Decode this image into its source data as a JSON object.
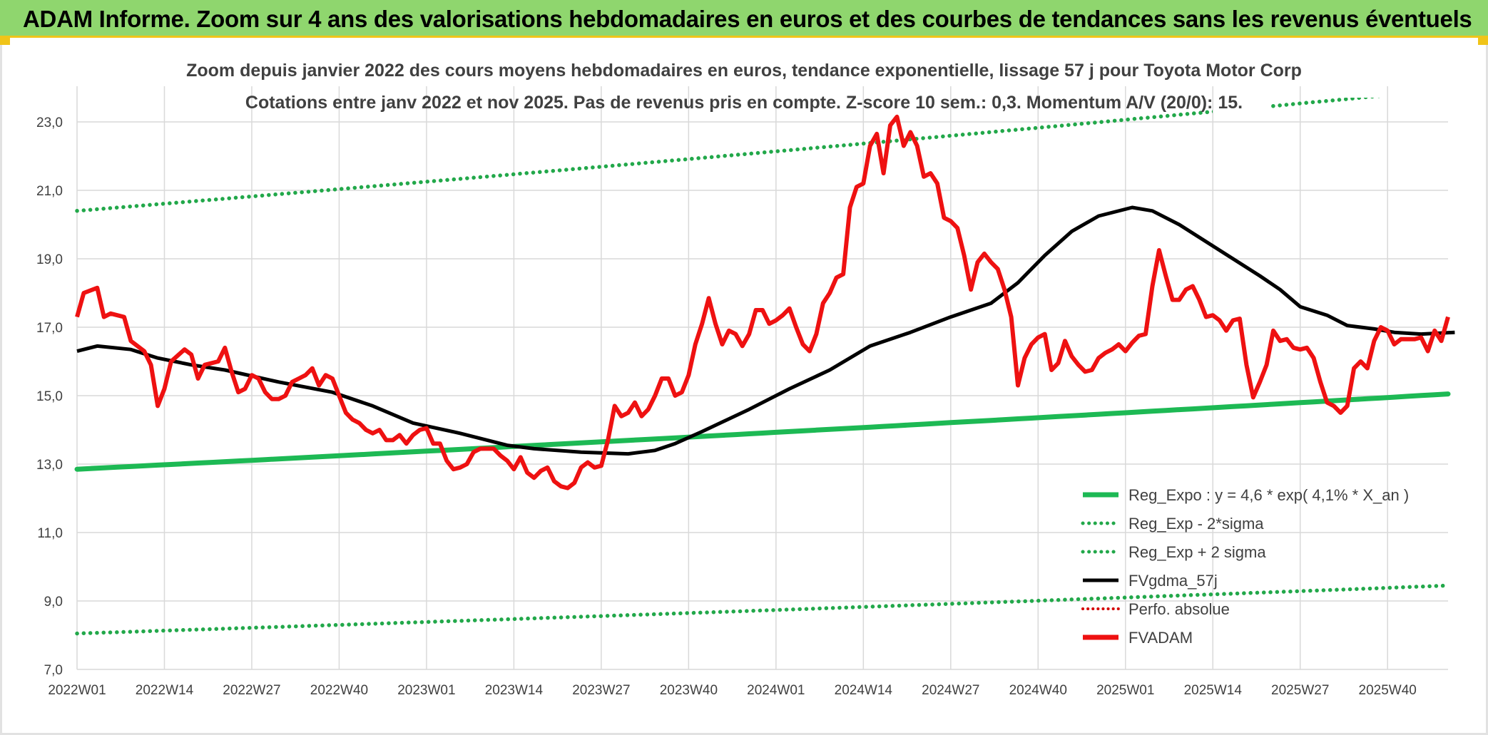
{
  "banner": {
    "title": "ADAM Informe. Zoom sur 4 ans des valorisations hebdomadaires en euros et des courbes de tendances sans les revenus éventuels"
  },
  "colors": {
    "banner_bg": "#8fd66e",
    "banner_border": "#f0c419",
    "reg_expo": "#1db954",
    "sigma_lines": "#22a84a",
    "fvgdma": "#000000",
    "perfo": "#d40000",
    "fvadam": "#ee1111",
    "grid": "#d9d9d9"
  },
  "chart_data": {
    "type": "line",
    "title_line1": "Zoom depuis janvier 2022 des cours moyens hebdomadaires en euros, tendance exponentielle, lissage 57 j pour Toyota Motor Corp",
    "title_line2": "Cotations entre janv 2022 et nov 2025. Pas de revenus pris en compte. Z-score 10 sem.: 0,3. Momentum A/V (20/0): 15.",
    "ylim": [
      7,
      24
    ],
    "y_ticks": [
      "7,0",
      "9,0",
      "11,0",
      "13,0",
      "15,0",
      "17,0",
      "19,0",
      "21,0",
      "23,0"
    ],
    "x_tick_labels": [
      "2022W01",
      "2022W14",
      "2022W27",
      "2022W40",
      "2023W01",
      "2023W14",
      "2023W27",
      "2023W40",
      "2024W01",
      "2024W14",
      "2024W27",
      "2024W40",
      "2025W01",
      "2025W14",
      "2025W27",
      "2025W40"
    ],
    "n_weeks": 205,
    "legend": {
      "reg_expo": "Reg_Expo : y = 4,6 * exp( 4,1% *  X_an )",
      "reg_minus": "Reg_Exp - 2*sigma",
      "reg_plus": "Reg_Exp + 2 sigma",
      "fvgdma": "FVgdma_57j",
      "perfo": "Perfo. absolue",
      "fvadam": "FVADAM"
    },
    "series": {
      "reg_expo": {
        "start": 12.85,
        "end": 15.05
      },
      "reg_minus": {
        "start": 8.05,
        "end": 9.45
      },
      "reg_plus": {
        "start": 20.4,
        "end": 23.95
      },
      "fvgdma_keypoints": [
        [
          0,
          16.3
        ],
        [
          3,
          16.45
        ],
        [
          8,
          16.35
        ],
        [
          12,
          16.1
        ],
        [
          17,
          15.9
        ],
        [
          22,
          15.75
        ],
        [
          30,
          15.4
        ],
        [
          38,
          15.1
        ],
        [
          44,
          14.7
        ],
        [
          50,
          14.2
        ],
        [
          57,
          13.9
        ],
        [
          64,
          13.55
        ],
        [
          68,
          13.45
        ],
        [
          75,
          13.35
        ],
        [
          82,
          13.3
        ],
        [
          86,
          13.4
        ],
        [
          89,
          13.6
        ],
        [
          93,
          13.95
        ],
        [
          100,
          14.6
        ],
        [
          106,
          15.2
        ],
        [
          112,
          15.75
        ],
        [
          118,
          16.45
        ],
        [
          124,
          16.85
        ],
        [
          130,
          17.3
        ],
        [
          136,
          17.7
        ],
        [
          140,
          18.3
        ],
        [
          144,
          19.1
        ],
        [
          148,
          19.8
        ],
        [
          152,
          20.25
        ],
        [
          157,
          20.5
        ],
        [
          160,
          20.4
        ],
        [
          164,
          20.0
        ],
        [
          168,
          19.5
        ],
        [
          172,
          19.0
        ],
        [
          176,
          18.5
        ],
        [
          179,
          18.1
        ],
        [
          182,
          17.6
        ],
        [
          186,
          17.35
        ],
        [
          189,
          17.05
        ],
        [
          193,
          16.95
        ],
        [
          196,
          16.85
        ],
        [
          200,
          16.8
        ],
        [
          205,
          16.85
        ]
      ],
      "fvadam_keypoints": [
        [
          0,
          17.3
        ],
        [
          1,
          18.0
        ],
        [
          3,
          18.15
        ],
        [
          4,
          17.3
        ],
        [
          5,
          17.4
        ],
        [
          7,
          17.3
        ],
        [
          8,
          16.6
        ],
        [
          10,
          16.3
        ],
        [
          11,
          15.9
        ],
        [
          12,
          14.7
        ],
        [
          13,
          15.2
        ],
        [
          14,
          16.0
        ],
        [
          16,
          16.35
        ],
        [
          17,
          16.2
        ],
        [
          18,
          15.5
        ],
        [
          19,
          15.9
        ],
        [
          21,
          16.0
        ],
        [
          22,
          16.4
        ],
        [
          23,
          15.7
        ],
        [
          24,
          15.1
        ],
        [
          25,
          15.2
        ],
        [
          26,
          15.6
        ],
        [
          27,
          15.5
        ],
        [
          28,
          15.1
        ],
        [
          29,
          14.9
        ],
        [
          30,
          14.9
        ],
        [
          31,
          15.0
        ],
        [
          32,
          15.4
        ],
        [
          33,
          15.5
        ],
        [
          34,
          15.6
        ],
        [
          35,
          15.8
        ],
        [
          36,
          15.3
        ],
        [
          37,
          15.6
        ],
        [
          38,
          15.5
        ],
        [
          39,
          15.0
        ],
        [
          40,
          14.5
        ],
        [
          41,
          14.3
        ],
        [
          42,
          14.2
        ],
        [
          43,
          14.0
        ],
        [
          44,
          13.9
        ],
        [
          45,
          14.0
        ],
        [
          46,
          13.7
        ],
        [
          47,
          13.7
        ],
        [
          48,
          13.85
        ],
        [
          49,
          13.6
        ],
        [
          50,
          13.85
        ],
        [
          51,
          14.0
        ],
        [
          52,
          14.05
        ],
        [
          53,
          13.6
        ],
        [
          54,
          13.6
        ],
        [
          55,
          13.1
        ],
        [
          56,
          12.85
        ],
        [
          57,
          12.9
        ],
        [
          58,
          13.0
        ],
        [
          59,
          13.35
        ],
        [
          60,
          13.45
        ],
        [
          61,
          13.45
        ],
        [
          62,
          13.45
        ],
        [
          63,
          13.25
        ],
        [
          64,
          13.1
        ],
        [
          65,
          12.85
        ],
        [
          66,
          13.2
        ],
        [
          67,
          12.75
        ],
        [
          68,
          12.6
        ],
        [
          69,
          12.8
        ],
        [
          70,
          12.9
        ],
        [
          71,
          12.5
        ],
        [
          72,
          12.35
        ],
        [
          73,
          12.3
        ],
        [
          74,
          12.45
        ],
        [
          75,
          12.9
        ],
        [
          76,
          13.05
        ],
        [
          77,
          12.9
        ],
        [
          78,
          12.95
        ],
        [
          79,
          13.7
        ],
        [
          80,
          14.7
        ],
        [
          81,
          14.4
        ],
        [
          82,
          14.5
        ],
        [
          83,
          14.8
        ],
        [
          84,
          14.4
        ],
        [
          85,
          14.6
        ],
        [
          86,
          15.0
        ],
        [
          87,
          15.5
        ],
        [
          88,
          15.5
        ],
        [
          89,
          15.0
        ],
        [
          90,
          15.1
        ],
        [
          91,
          15.6
        ],
        [
          92,
          16.5
        ],
        [
          93,
          17.1
        ],
        [
          94,
          17.85
        ],
        [
          95,
          17.1
        ],
        [
          96,
          16.5
        ],
        [
          97,
          16.9
        ],
        [
          98,
          16.8
        ],
        [
          99,
          16.45
        ],
        [
          100,
          16.8
        ],
        [
          101,
          17.5
        ],
        [
          102,
          17.5
        ],
        [
          103,
          17.1
        ],
        [
          104,
          17.2
        ],
        [
          105,
          17.35
        ],
        [
          106,
          17.55
        ],
        [
          107,
          17.0
        ],
        [
          108,
          16.5
        ],
        [
          109,
          16.3
        ],
        [
          110,
          16.8
        ],
        [
          111,
          17.7
        ],
        [
          112,
          18.0
        ],
        [
          113,
          18.45
        ],
        [
          114,
          18.55
        ],
        [
          115,
          20.5
        ],
        [
          116,
          21.1
        ],
        [
          117,
          21.2
        ],
        [
          118,
          22.3
        ],
        [
          119,
          22.65
        ],
        [
          120,
          21.5
        ],
        [
          121,
          22.9
        ],
        [
          122,
          23.15
        ],
        [
          123,
          22.3
        ],
        [
          124,
          22.7
        ],
        [
          125,
          22.3
        ],
        [
          126,
          21.4
        ],
        [
          127,
          21.5
        ],
        [
          128,
          21.2
        ],
        [
          129,
          20.2
        ],
        [
          130,
          20.1
        ],
        [
          131,
          19.9
        ],
        [
          132,
          19.1
        ],
        [
          133,
          18.1
        ],
        [
          134,
          18.9
        ],
        [
          135,
          19.15
        ],
        [
          136,
          18.9
        ],
        [
          137,
          18.7
        ],
        [
          138,
          18.1
        ],
        [
          139,
          17.3
        ],
        [
          140,
          15.3
        ],
        [
          141,
          16.1
        ],
        [
          142,
          16.5
        ],
        [
          143,
          16.7
        ],
        [
          144,
          16.8
        ],
        [
          145,
          15.75
        ],
        [
          146,
          15.95
        ],
        [
          147,
          16.6
        ],
        [
          148,
          16.15
        ],
        [
          149,
          15.9
        ],
        [
          150,
          15.7
        ],
        [
          151,
          15.75
        ],
        [
          152,
          16.1
        ],
        [
          153,
          16.25
        ],
        [
          154,
          16.35
        ],
        [
          155,
          16.5
        ],
        [
          156,
          16.3
        ],
        [
          157,
          16.55
        ],
        [
          158,
          16.75
        ],
        [
          159,
          16.8
        ],
        [
          160,
          18.2
        ],
        [
          161,
          19.25
        ],
        [
          162,
          18.5
        ],
        [
          163,
          17.8
        ],
        [
          164,
          17.8
        ],
        [
          165,
          18.1
        ],
        [
          166,
          18.2
        ],
        [
          167,
          17.8
        ],
        [
          168,
          17.3
        ],
        [
          169,
          17.35
        ],
        [
          170,
          17.2
        ],
        [
          171,
          16.9
        ],
        [
          172,
          17.2
        ],
        [
          173,
          17.25
        ],
        [
          174,
          15.9
        ],
        [
          175,
          14.95
        ],
        [
          176,
          15.4
        ],
        [
          177,
          15.9
        ],
        [
          178,
          16.9
        ],
        [
          179,
          16.6
        ],
        [
          180,
          16.65
        ],
        [
          181,
          16.4
        ],
        [
          182,
          16.35
        ],
        [
          183,
          16.4
        ],
        [
          184,
          16.1
        ],
        [
          185,
          15.4
        ],
        [
          186,
          14.8
        ],
        [
          187,
          14.7
        ],
        [
          188,
          14.5
        ],
        [
          189,
          14.7
        ],
        [
          190,
          15.8
        ],
        [
          191,
          16.0
        ],
        [
          192,
          15.8
        ],
        [
          193,
          16.6
        ],
        [
          194,
          17.0
        ],
        [
          195,
          16.9
        ],
        [
          196,
          16.5
        ],
        [
          197,
          16.65
        ],
        [
          198,
          16.65
        ],
        [
          199,
          16.65
        ],
        [
          200,
          16.7
        ],
        [
          201,
          16.3
        ],
        [
          202,
          16.9
        ],
        [
          203,
          16.6
        ],
        [
          204,
          17.3
        ]
      ]
    }
  }
}
